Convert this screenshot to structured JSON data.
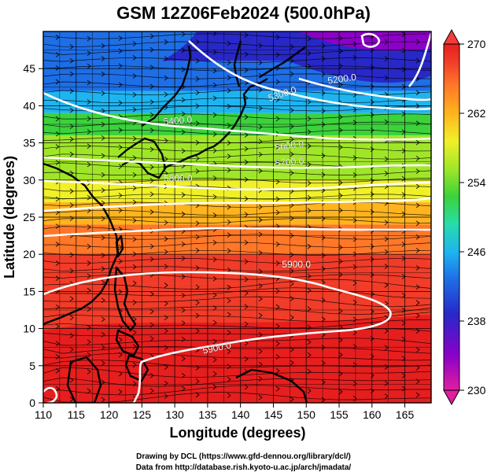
{
  "title": "GSM 12Z06Feb2024 (500.0hPa)",
  "xlabel": "Longitude (degrees)",
  "ylabel": "Latitude  (degrees)",
  "credits": [
    "Drawing by DCL (https://www.gfd-dennou.org/library/dcl/)",
    "Data from http://database.rish.kyoto-u.ac.jp/arch/jmadata/"
  ],
  "map": {
    "lon_range": [
      110,
      169
    ],
    "lat_range": [
      0,
      50
    ],
    "lon_ticks": [
      "110",
      "115",
      "120",
      "125",
      "130",
      "135",
      "140",
      "145",
      "150",
      "155",
      "160",
      "165"
    ],
    "lat_ticks": [
      "0",
      "5",
      "10",
      "15",
      "20",
      "25",
      "30",
      "35",
      "40",
      "45"
    ],
    "contour_labels": [
      {
        "text": "5200.0",
        "lon": 155.5,
        "lat": 43.2,
        "rotation": -8
      },
      {
        "text": "5300.0",
        "lon": 146.5,
        "lat": 41.2,
        "rotation": -18
      },
      {
        "text": "5400.0",
        "lon": 130.5,
        "lat": 37.6,
        "rotation": -5
      },
      {
        "text": "5600.0",
        "lon": 147.5,
        "lat": 34.2,
        "rotation": -8
      },
      {
        "text": "5700.0",
        "lon": 147.5,
        "lat": 32.0,
        "rotation": -5
      },
      {
        "text": "5800.0",
        "lon": 130.5,
        "lat": 29.8,
        "rotation": 0
      },
      {
        "text": "5900.0",
        "lon": 148.5,
        "lat": 18.2,
        "rotation": 0
      },
      {
        "text": "5900.0",
        "lon": 136.5,
        "lat": 7.0,
        "rotation": -12
      }
    ]
  },
  "colorbar": {
    "min": 230,
    "max": 270,
    "tick_labels": [
      "270",
      "262",
      "254",
      "246",
      "238",
      "230"
    ]
  },
  "colors": {
    "scale": [
      "#e01ea0",
      "#8c00c8",
      "#2828c8",
      "#1e6ee6",
      "#1eb4f0",
      "#28dcaa",
      "#3cd23c",
      "#a0e628",
      "#f0f028",
      "#ffb41e",
      "#ff7828",
      "#f03c28",
      "#e61e1e"
    ]
  }
}
